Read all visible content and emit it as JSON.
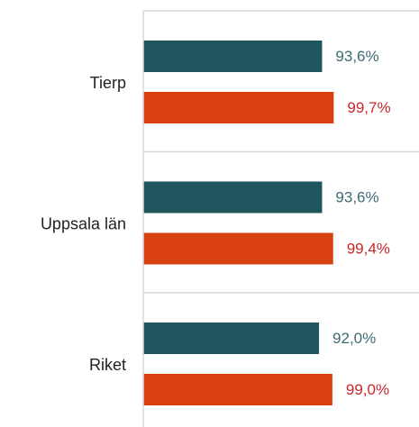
{
  "chart_data": {
    "type": "hbar",
    "categories": [
      "Tierp",
      "Uppsala län",
      "Riket"
    ],
    "series": [
      {
        "color": "#1f565e",
        "label_color": "#3d6b72",
        "values": [
          93.6,
          93.6,
          92.0
        ],
        "value_labels": [
          "93,6%",
          "93,6%",
          "92,0%"
        ]
      },
      {
        "color": "#d9400f",
        "label_color": "#c8282a",
        "values": [
          99.7,
          99.4,
          99.0
        ],
        "value_labels": [
          "99,7%",
          "99,4%",
          "99,0%"
        ]
      }
    ]
  }
}
